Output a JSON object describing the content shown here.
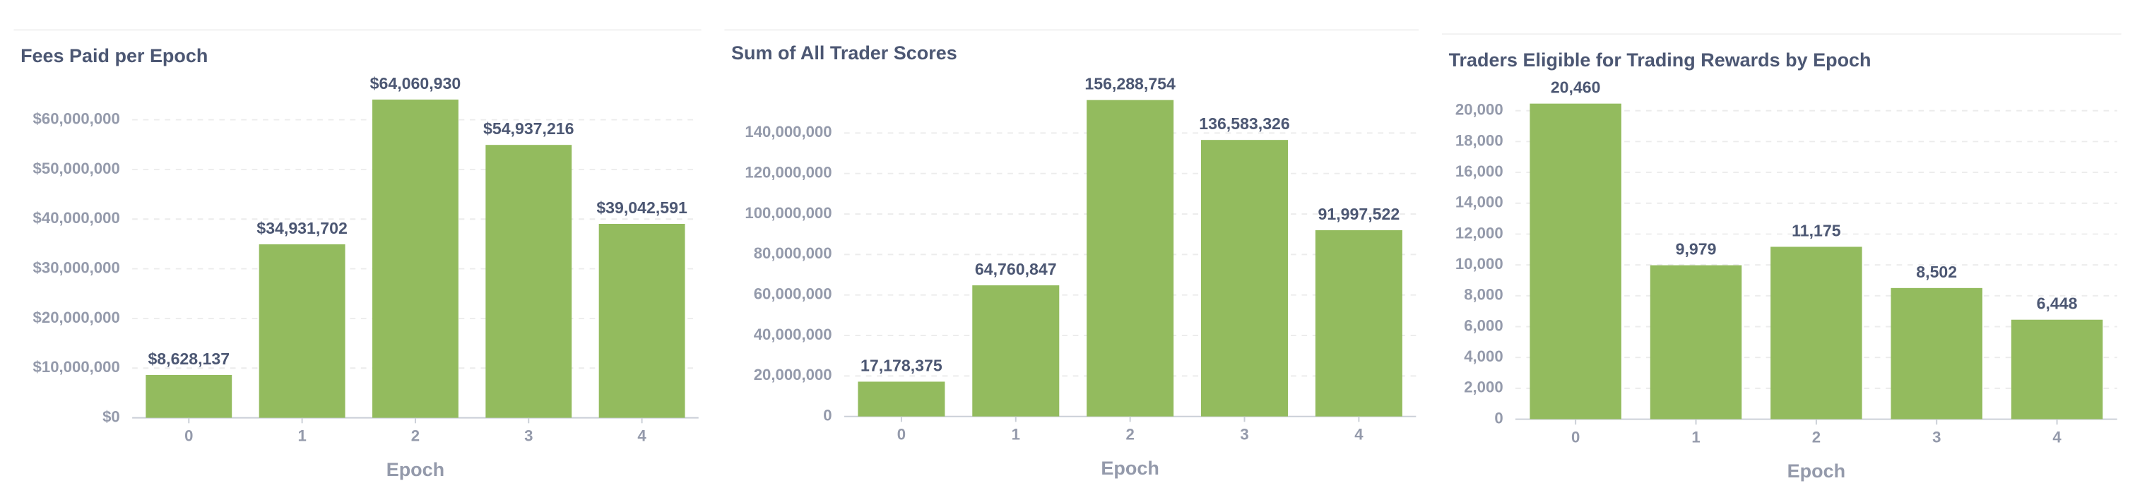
{
  "chart_data": [
    {
      "type": "bar",
      "title": "Fees Paid per Epoch",
      "x_label": "Epoch",
      "categories": [
        "0",
        "1",
        "2",
        "3",
        "4"
      ],
      "values": [
        8628137,
        34931702,
        64060930,
        54937216,
        39042591
      ],
      "value_labels": [
        "$8,628,137",
        "$34,931,702",
        "$64,060,930",
        "$54,937,216",
        "$39,042,591"
      ],
      "color": "#93bb5e",
      "ylim": [
        0,
        70000000
      ],
      "yticks": [
        {
          "value": 0,
          "label": "$0"
        },
        {
          "value": 10000000,
          "label": "$10,000,000"
        },
        {
          "value": 20000000,
          "label": "$20,000,000"
        },
        {
          "value": 30000000,
          "label": "$30,000,000"
        },
        {
          "value": 40000000,
          "label": "$40,000,000"
        },
        {
          "value": 50000000,
          "label": "$50,000,000"
        },
        {
          "value": 60000000,
          "label": "$60,000,000"
        }
      ],
      "grid": true
    },
    {
      "type": "bar",
      "title": "Sum of All Trader Scores",
      "x_label": "Epoch",
      "categories": [
        "0",
        "1",
        "2",
        "3",
        "4"
      ],
      "values": [
        17178375,
        64760847,
        156288754,
        136583326,
        91997522
      ],
      "value_labels": [
        "17,178,375",
        "64,760,847",
        "156,288,754",
        "136,583,326",
        "91,997,522"
      ],
      "color": "#93bb5e",
      "ylim": [
        0,
        160000000
      ],
      "yticks": [
        0,
        {
          "value": 20000000,
          "label": "20,000,000"
        },
        {
          "value": 40000000,
          "label": "40,000,000"
        },
        {
          "value": 60000000,
          "label": "60,000,000"
        },
        {
          "value": 80000000,
          "label": "80,000,000"
        },
        {
          "value": 100000000,
          "label": "100,000,000"
        },
        {
          "value": 120000000,
          "label": "120,000,000"
        },
        {
          "value": 140000000,
          "label": "140,000,000"
        }
      ],
      "grid": true
    },
    {
      "type": "bar",
      "title": "Traders Eligible for Trading Rewards by Epoch",
      "x_label": "Epoch",
      "categories": [
        "0",
        "1",
        "2",
        "3",
        "4"
      ],
      "values": [
        20460,
        9979,
        11175,
        8502,
        6448
      ],
      "value_labels": [
        "20,460",
        "9,979",
        "11,175",
        "8,502",
        "6,448"
      ],
      "color": "#93bb5e",
      "ylim": [
        0,
        21000
      ],
      "yticks": [
        0,
        {
          "value": 2000,
          "label": "2,000"
        },
        {
          "value": 4000,
          "label": "4,000"
        },
        {
          "value": 6000,
          "label": "6,000"
        },
        {
          "value": 8000,
          "label": "8,000"
        },
        {
          "value": 10000,
          "label": "10,000"
        },
        {
          "value": 12000,
          "label": "12,000"
        },
        {
          "value": 14000,
          "label": "14,000"
        },
        {
          "value": 16000,
          "label": "16,000"
        },
        {
          "value": 18000,
          "label": "18,000"
        },
        {
          "value": 20000,
          "label": "20,000"
        }
      ],
      "grid": true
    }
  ]
}
